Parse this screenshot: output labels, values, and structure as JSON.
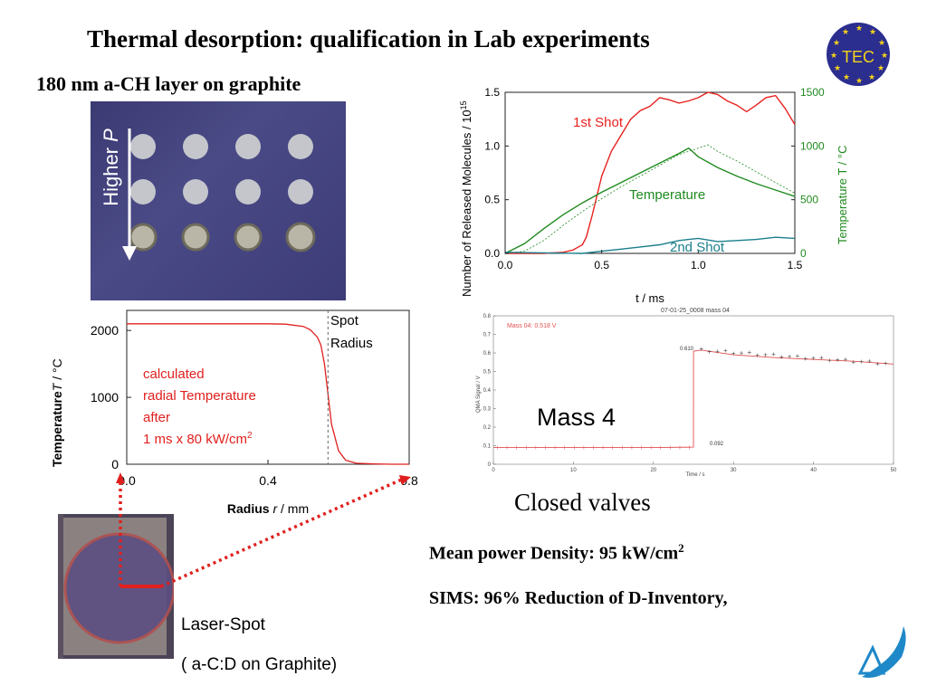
{
  "title": "Thermal desorption: qualification in Lab experiments",
  "subtitle": "180 nm a-CH layer on graphite",
  "logo_tec": "TEC",
  "sample_photo": {
    "arrow_label_text": "Higher ",
    "arrow_label_italic": "P"
  },
  "chart_desorption": {
    "type": "line",
    "xlabel": "t / ms",
    "ylabel_left": "Number of Released Molecules / 10",
    "ylabel_left_exp": "15",
    "ylabel_right": "Temperature T / °C",
    "x_ticks": [
      "0.0",
      "0.5",
      "1.0",
      "1.5"
    ],
    "y_ticks_left": [
      "0.0",
      "0.5",
      "1.0",
      "1.5"
    ],
    "y_ticks_right": [
      "0",
      "500",
      "1000",
      "1500"
    ],
    "annotations": {
      "first_shot": "1st Shot",
      "temperature": "Temperature",
      "second_shot": "2nd Shot"
    },
    "colors": {
      "first_shot": "#e8211f",
      "temperature": "#1f8a1f",
      "second_shot": "#1a7f8c"
    },
    "xlim": [
      0,
      1.5
    ],
    "ylim_left": [
      0,
      1.5
    ],
    "ylim_right": [
      0,
      1500
    ],
    "series": [
      {
        "name": "1st Shot",
        "axis": "left",
        "x": [
          0,
          0.1,
          0.2,
          0.3,
          0.35,
          0.4,
          0.42,
          0.45,
          0.5,
          0.55,
          0.6,
          0.65,
          0.7,
          0.75,
          0.8,
          0.85,
          0.9,
          0.95,
          1.0,
          1.05,
          1.1,
          1.15,
          1.2,
          1.25,
          1.3,
          1.35,
          1.4,
          1.45,
          1.5
        ],
        "y": [
          0,
          0,
          0,
          0.01,
          0.03,
          0.08,
          0.15,
          0.35,
          0.72,
          0.95,
          1.1,
          1.25,
          1.33,
          1.37,
          1.45,
          1.43,
          1.4,
          1.42,
          1.45,
          1.5,
          1.48,
          1.42,
          1.38,
          1.32,
          1.38,
          1.45,
          1.47,
          1.35,
          1.2
        ]
      },
      {
        "name": "Temperature",
        "axis": "right",
        "x": [
          0,
          0.1,
          0.2,
          0.3,
          0.4,
          0.5,
          0.6,
          0.7,
          0.8,
          0.9,
          0.95,
          1.0,
          1.1,
          1.2,
          1.3,
          1.4,
          1.5
        ],
        "y": [
          0,
          90,
          230,
          360,
          470,
          570,
          660,
          750,
          840,
          930,
          980,
          900,
          800,
          720,
          650,
          590,
          530
        ]
      },
      {
        "name": "Temperature (calc.)",
        "axis": "right",
        "x": [
          0,
          0.1,
          0.2,
          0.3,
          0.4,
          0.5,
          0.6,
          0.7,
          0.8,
          0.9,
          1.0,
          1.05,
          1.1,
          1.2,
          1.3,
          1.4,
          1.5
        ],
        "y": [
          0,
          20,
          120,
          260,
          390,
          510,
          620,
          720,
          820,
          920,
          980,
          1010,
          950,
          860,
          760,
          660,
          560
        ]
      },
      {
        "name": "2nd Shot",
        "axis": "left",
        "x": [
          0,
          0.2,
          0.4,
          0.5,
          0.6,
          0.7,
          0.8,
          0.9,
          1.0,
          1.1,
          1.2,
          1.3,
          1.4,
          1.5
        ],
        "y": [
          0.01,
          0.005,
          0.0,
          0.02,
          0.04,
          0.06,
          0.08,
          0.12,
          0.14,
          0.11,
          0.12,
          0.13,
          0.15,
          0.14
        ]
      }
    ]
  },
  "chart_radial": {
    "type": "line",
    "xlabel_bold": "Radius ",
    "xlabel_italic": "r",
    "xlabel_rest": " / mm",
    "ylabel_bold": "Temperature",
    "ylabel_italic": "T",
    "ylabel_rest": " / °C",
    "x_ticks": [
      "0.0",
      "0.4",
      "0.8"
    ],
    "y_ticks": [
      "0",
      "1000",
      "2000"
    ],
    "xlim": [
      0,
      0.8
    ],
    "ylim": [
      0,
      2300
    ],
    "spot_line_x": 0.57,
    "spot_label_1": "Spot",
    "spot_label_2": "Radius",
    "note_1": "calculated",
    "note_2": "radial Temperature",
    "note_3": "after",
    "note_4": "1 ms  x  80 kW/cm",
    "note_4_sup": "2",
    "series": [
      {
        "x": [
          0,
          0.1,
          0.2,
          0.3,
          0.4,
          0.45,
          0.5,
          0.52,
          0.54,
          0.55,
          0.56,
          0.57,
          0.58,
          0.6,
          0.62,
          0.65,
          0.7,
          0.75,
          0.8
        ],
        "y": [
          2100,
          2100,
          2100,
          2100,
          2100,
          2095,
          2060,
          2010,
          1900,
          1780,
          1500,
          1050,
          600,
          200,
          60,
          15,
          5,
          0,
          0
        ]
      }
    ]
  },
  "chart_mass": {
    "type": "line",
    "title": "07-01-25_0008 mass 04",
    "legend": "Mass 04: 0.518 V",
    "xlabel": "Time / s",
    "ylabel": "QMA Signal / V",
    "x_ticks": [
      "0",
      "10",
      "20",
      "30",
      "40",
      "50"
    ],
    "y_ticks": [
      "0",
      "0.1",
      "0.2",
      "0.3",
      "0.4",
      "0.5",
      "0.6",
      "0.7",
      "0.8"
    ],
    "xlim": [
      0,
      50
    ],
    "ylim": [
      0,
      0.8
    ],
    "val_high": "0.610",
    "val_low": "0.092",
    "overlay": "Mass 4",
    "series": [
      {
        "x": [
          0,
          5,
          10,
          15,
          20,
          25,
          25.01,
          26,
          30,
          35,
          40,
          45,
          50
        ],
        "y": [
          0.09,
          0.09,
          0.09,
          0.09,
          0.09,
          0.092,
          0.61,
          0.615,
          0.59,
          0.575,
          0.565,
          0.555,
          0.54
        ]
      }
    ]
  },
  "closed_valves": "Closed valves",
  "mean_power_label": "Mean power Density:  95 kW/cm",
  "mean_power_sup": "2",
  "sims_text": "SIMS: 96% Reduction of D-Inventory,",
  "laser_caption_1": "Laser-Spot",
  "laser_caption_2": "( a-C:D on Graphite)"
}
